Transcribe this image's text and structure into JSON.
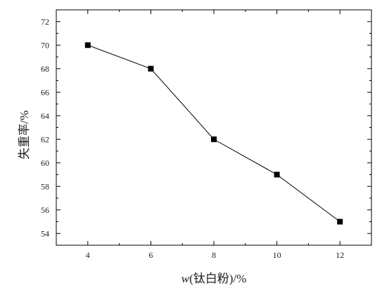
{
  "chart_data": {
    "type": "line",
    "x": [
      4,
      6,
      8,
      10,
      12
    ],
    "series": [
      {
        "values": [
          70,
          68,
          62,
          59,
          55
        ]
      }
    ],
    "xlabel_italic": "w",
    "xlabel_rest": "(钛白粉)/%",
    "ylabel": "失重率/%",
    "xlim": [
      3,
      13
    ],
    "ylim": [
      53,
      73
    ],
    "xticks": [
      4,
      6,
      8,
      10,
      12
    ],
    "yticks": [
      54,
      56,
      58,
      60,
      62,
      64,
      66,
      68,
      70,
      72
    ],
    "grid": false,
    "marker": "square",
    "line_color": "#000000"
  }
}
